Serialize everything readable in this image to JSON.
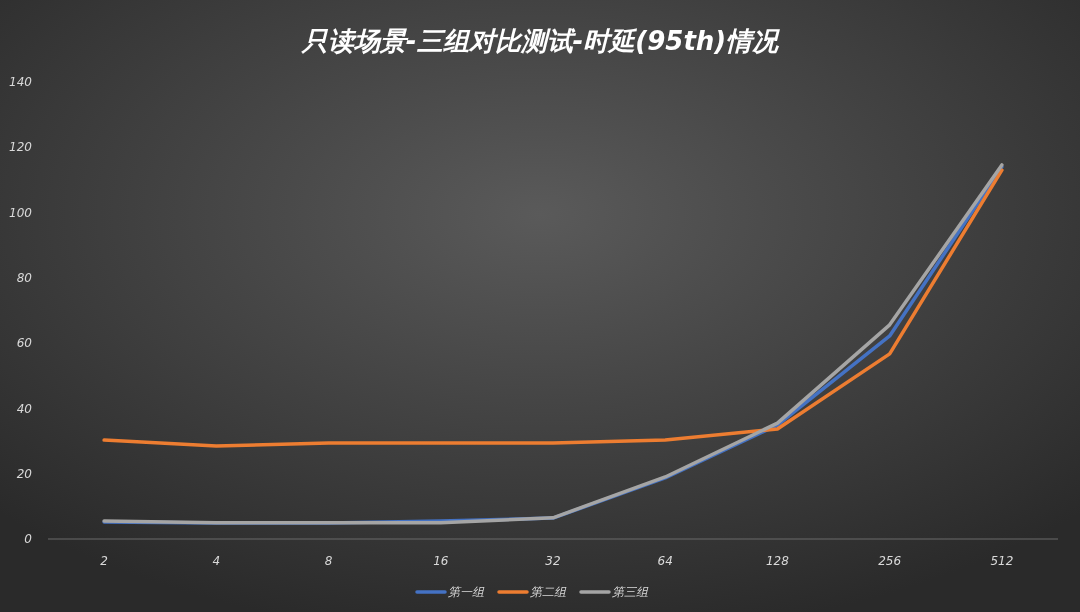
{
  "chart_data": {
    "type": "line",
    "title": "只读场景-三组对比测试-时延(95th)情况",
    "categories": [
      "2",
      "4",
      "8",
      "16",
      "32",
      "64",
      "128",
      "256",
      "512"
    ],
    "series": [
      {
        "name": "第一组",
        "color": "#4472c4",
        "values": [
          5.2,
          4.9,
          4.9,
          5.5,
          6.4,
          18.7,
          34.9,
          62.2,
          114
        ]
      },
      {
        "name": "第二组",
        "color": "#ed7d31",
        "values": [
          30.3,
          28.5,
          29.4,
          29.4,
          29.4,
          30.3,
          33.7,
          56.7,
          113
        ]
      },
      {
        "name": "第三组",
        "color": "#a5a5a5",
        "values": [
          5.5,
          5.0,
          5.0,
          5.0,
          6.5,
          19,
          35.5,
          65.6,
          114.6
        ]
      }
    ],
    "ylim": [
      0,
      140
    ],
    "yticks": [
      0,
      20,
      40,
      60,
      80,
      100,
      120,
      140
    ],
    "legend": "bottom",
    "marker": "none",
    "line_style": "solid"
  }
}
